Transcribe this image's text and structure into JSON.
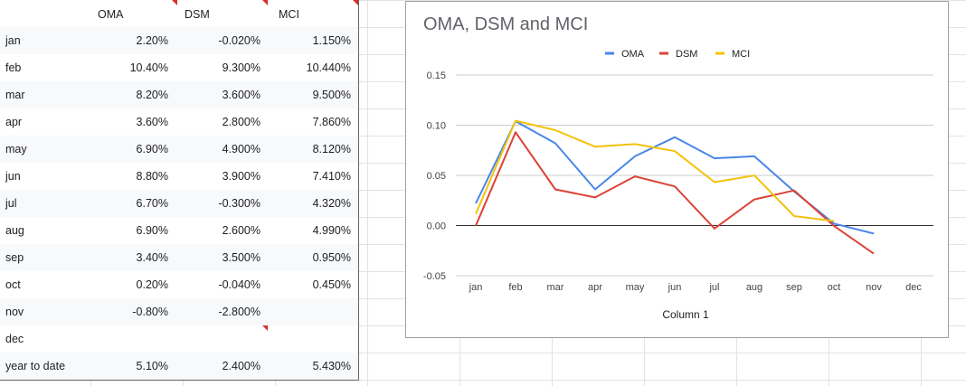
{
  "table": {
    "headers": [
      "",
      "OMA",
      "DSM",
      "MCI"
    ],
    "rows": [
      [
        "jan",
        "2.20%",
        "-0.020%",
        "1.150%"
      ],
      [
        "feb",
        "10.40%",
        "9.300%",
        "10.440%"
      ],
      [
        "mar",
        "8.20%",
        "3.600%",
        "9.500%"
      ],
      [
        "apr",
        "3.60%",
        "2.800%",
        "7.860%"
      ],
      [
        "may",
        "6.90%",
        "4.900%",
        "8.120%"
      ],
      [
        "jun",
        "8.80%",
        "3.900%",
        "7.410%"
      ],
      [
        "jul",
        "6.70%",
        "-0.300%",
        "4.320%"
      ],
      [
        "aug",
        "6.90%",
        "2.600%",
        "4.990%"
      ],
      [
        "sep",
        "3.40%",
        "3.500%",
        "0.950%"
      ],
      [
        "oct",
        "0.20%",
        "-0.040%",
        "0.450%"
      ],
      [
        "nov",
        "-0.80%",
        "-2.800%",
        ""
      ],
      [
        "dec",
        "",
        "",
        ""
      ],
      [
        "year to date",
        "5.10%",
        "2.400%",
        "5.430%"
      ]
    ]
  },
  "chart_data": {
    "type": "line",
    "title": "OMA, DSM and MCI",
    "xlabel": "Column 1",
    "ylabel": "",
    "categories": [
      "jan",
      "feb",
      "mar",
      "apr",
      "may",
      "jun",
      "jul",
      "aug",
      "sep",
      "oct",
      "nov",
      "dec"
    ],
    "ylim": [
      -0.05,
      0.15
    ],
    "yticks": [
      -0.05,
      0.0,
      0.05,
      0.1,
      0.15
    ],
    "ytick_labels": [
      "-0.05",
      "0.00",
      "0.05",
      "0.10",
      "0.15"
    ],
    "legend_position": "top",
    "grid": true,
    "series": [
      {
        "name": "OMA",
        "color": "#4a86e8",
        "values": [
          0.022,
          0.104,
          0.082,
          0.036,
          0.069,
          0.088,
          0.067,
          0.069,
          0.034,
          0.002,
          -0.008,
          null
        ]
      },
      {
        "name": "DSM",
        "color": "#db4437",
        "values": [
          -0.0002,
          0.093,
          0.036,
          0.028,
          0.049,
          0.039,
          -0.003,
          0.026,
          0.035,
          -0.0004,
          -0.028,
          null
        ]
      },
      {
        "name": "MCI",
        "color": "#f4c20d",
        "values": [
          0.0115,
          0.1044,
          0.095,
          0.0786,
          0.0812,
          0.0741,
          0.0432,
          0.0499,
          0.0095,
          0.0045,
          null,
          null
        ]
      }
    ]
  }
}
